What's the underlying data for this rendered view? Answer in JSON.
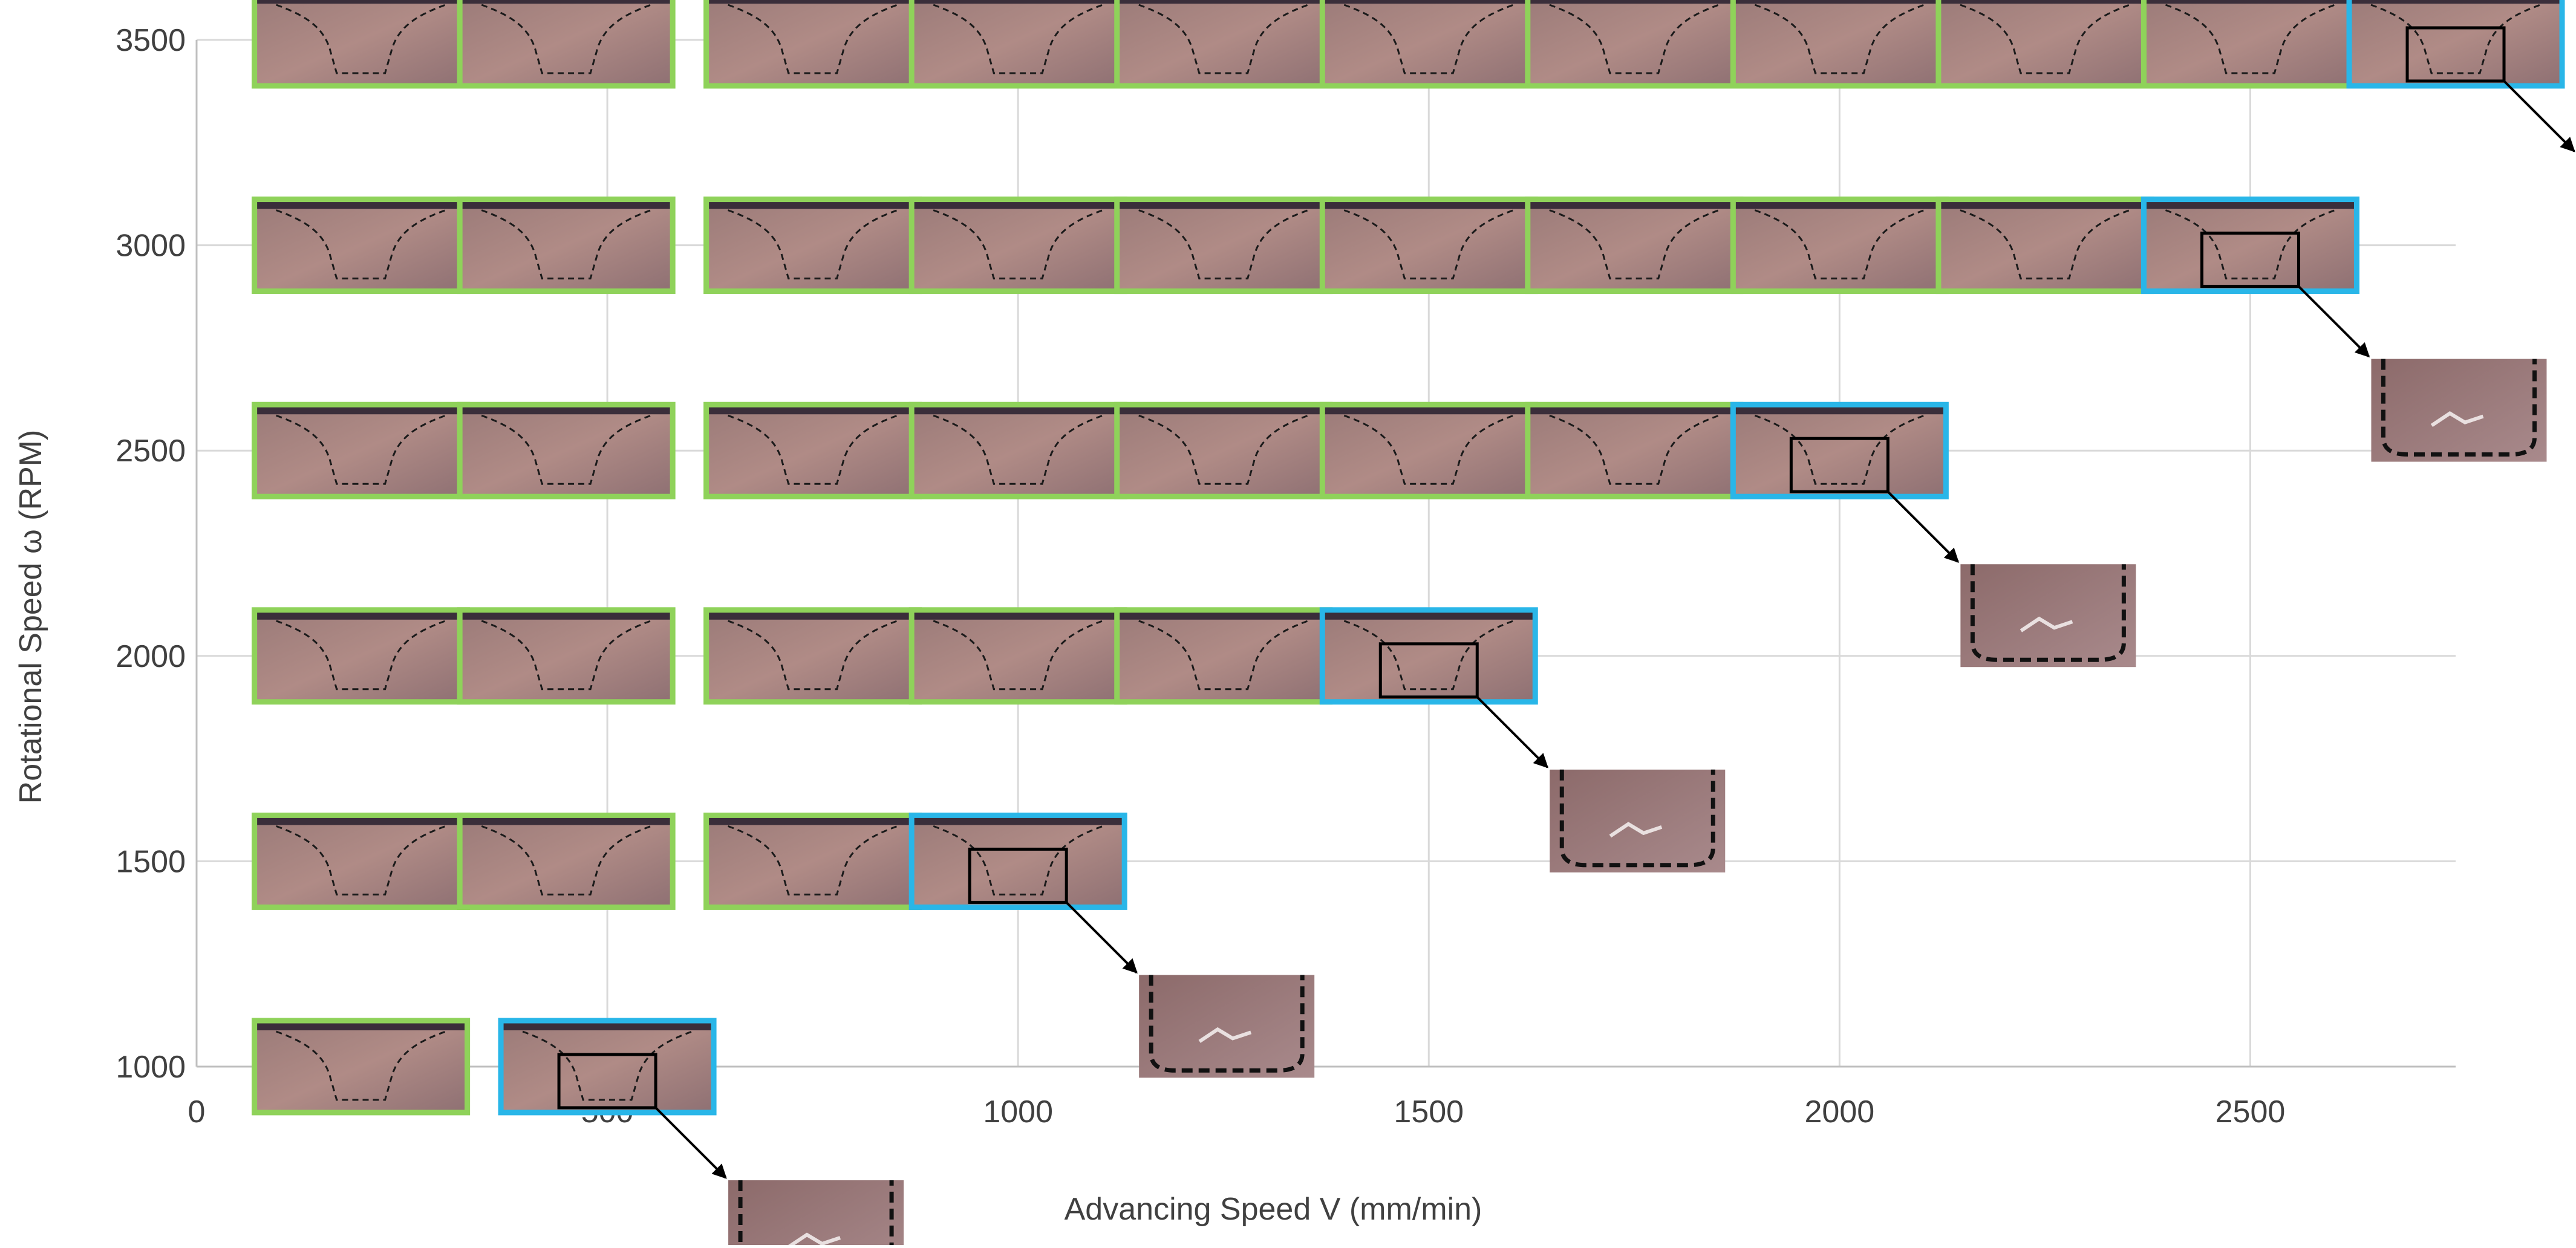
{
  "chart_data": {
    "type": "scatter",
    "title": "",
    "xlabel": "Advancing Speed V (mm/min)",
    "ylabel": "Rotational Speed ω (RPM)",
    "xlim": [
      0,
      2750
    ],
    "ylim": [
      1000,
      3500
    ],
    "x_ticks": [
      0,
      500,
      1000,
      1500,
      2000,
      2500
    ],
    "y_ticks": [
      1000,
      1500,
      2000,
      2500,
      3000,
      3500
    ],
    "x_tick_labels": [
      "0",
      "500",
      "1000",
      "1500",
      "2000",
      "2500"
    ],
    "y_tick_labels": [
      "1000",
      "1500",
      "2000",
      "2500",
      "3000",
      "3500"
    ],
    "grid": true,
    "legend": "none",
    "colors": {
      "sound_weld_border": "#8fd25a",
      "defect_weld_border": "#29b6e8",
      "gridline": "#d9d9d9",
      "axis_text": "#404040"
    },
    "series": [
      {
        "status": "sound",
        "points": [
          {
            "x": 200,
            "y": 3500
          },
          {
            "x": 450,
            "y": 3500
          },
          {
            "x": 750,
            "y": 3500
          },
          {
            "x": 1000,
            "y": 3500
          },
          {
            "x": 1250,
            "y": 3500
          },
          {
            "x": 1500,
            "y": 3500
          },
          {
            "x": 1750,
            "y": 3500
          },
          {
            "x": 2000,
            "y": 3500
          },
          {
            "x": 2250,
            "y": 3500
          },
          {
            "x": 2500,
            "y": 3500
          },
          {
            "x": 200,
            "y": 3000
          },
          {
            "x": 450,
            "y": 3000
          },
          {
            "x": 750,
            "y": 3000
          },
          {
            "x": 1000,
            "y": 3000
          },
          {
            "x": 1250,
            "y": 3000
          },
          {
            "x": 1500,
            "y": 3000
          },
          {
            "x": 1750,
            "y": 3000
          },
          {
            "x": 2000,
            "y": 3000
          },
          {
            "x": 2250,
            "y": 3000
          },
          {
            "x": 200,
            "y": 2500
          },
          {
            "x": 450,
            "y": 2500
          },
          {
            "x": 750,
            "y": 2500
          },
          {
            "x": 1000,
            "y": 2500
          },
          {
            "x": 1250,
            "y": 2500
          },
          {
            "x": 1500,
            "y": 2500
          },
          {
            "x": 1750,
            "y": 2500
          },
          {
            "x": 200,
            "y": 2000
          },
          {
            "x": 450,
            "y": 2000
          },
          {
            "x": 750,
            "y": 2000
          },
          {
            "x": 1000,
            "y": 2000
          },
          {
            "x": 1250,
            "y": 2000
          },
          {
            "x": 200,
            "y": 1500
          },
          {
            "x": 450,
            "y": 1500
          },
          {
            "x": 750,
            "y": 1500
          },
          {
            "x": 200,
            "y": 1000
          }
        ]
      },
      {
        "status": "defect",
        "points": [
          {
            "x": 2750,
            "y": 3500
          },
          {
            "x": 2500,
            "y": 3000
          },
          {
            "x": 2000,
            "y": 2500
          },
          {
            "x": 1500,
            "y": 2000
          },
          {
            "x": 1000,
            "y": 1500
          },
          {
            "x": 500,
            "y": 1000
          }
        ]
      }
    ]
  }
}
